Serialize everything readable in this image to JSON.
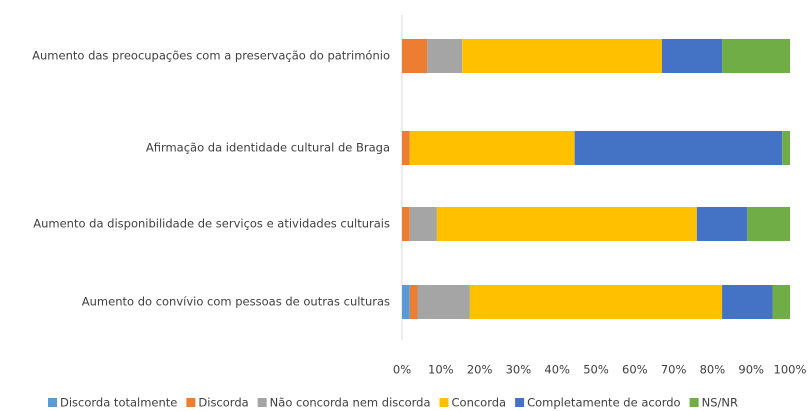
{
  "chart_data": {
    "type": "stacked_barh",
    "categories": [
      "Aumento das preocupações com a preservação do património",
      "Afirmação da identidade cultural de Braga",
      "Aumento da disponibilidade de serviços e atividades culturais",
      "Aumento do convívio com pessoas de outras culturas"
    ],
    "series": [
      {
        "name": "Discorda totalmente",
        "color": "#5b9bd5",
        "values": [
          0,
          0,
          0,
          2
        ]
      },
      {
        "name": "Discorda",
        "color": "#ed7d31",
        "values": [
          6.5,
          2,
          2,
          2
        ]
      },
      {
        "name": "Não concorda nem discorda",
        "color": "#a5a5a5",
        "values": [
          9,
          0,
          7,
          13.5
        ]
      },
      {
        "name": "Concorda",
        "color": "#ffc000",
        "values": [
          51.5,
          42.5,
          67,
          65
        ]
      },
      {
        "name": "Completamente de acordo",
        "color": "#4472c4",
        "values": [
          15.5,
          53.5,
          13,
          13
        ]
      },
      {
        "name": "NS/NR",
        "color": "#70ad47",
        "values": [
          17.5,
          2,
          11,
          4.5
        ]
      }
    ],
    "xlim": [
      0,
      100
    ],
    "xticks": [
      {
        "value": 0,
        "label": "0%"
      },
      {
        "value": 10,
        "label": "10%"
      },
      {
        "value": 20,
        "label": "20%"
      },
      {
        "value": 30,
        "label": "30%"
      },
      {
        "value": 40,
        "label": "40%"
      },
      {
        "value": 50,
        "label": "50%"
      },
      {
        "value": 60,
        "label": "60%"
      },
      {
        "value": 70,
        "label": "70%"
      },
      {
        "value": 80,
        "label": "80%"
      },
      {
        "value": 90,
        "label": "90%"
      },
      {
        "value": 100,
        "label": "100%"
      }
    ],
    "grid": false,
    "legend": "bottom"
  }
}
